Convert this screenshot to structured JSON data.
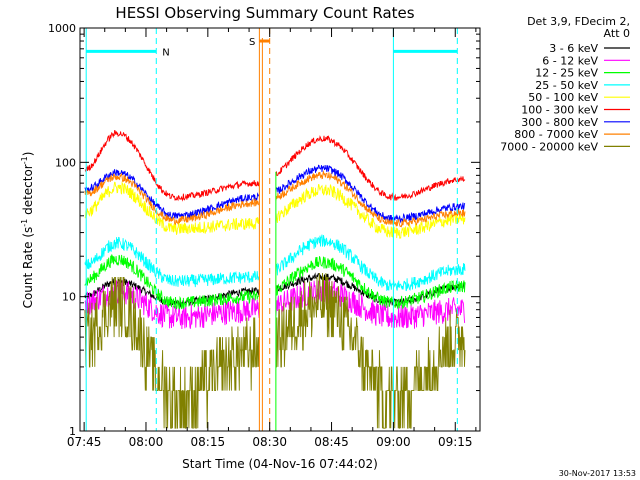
{
  "chart_data": {
    "type": "line",
    "title": "HESSI Observing Summary Count Rates",
    "xlabel": "Start Time (04-Nov-16 07:44:02)",
    "ylabel": "Count Rate (s",
    "ylabel_sup1": "-1",
    "ylabel_mid": " detector",
    "ylabel_sup2": "-1",
    "ylabel_end": ")",
    "yscale": "log",
    "ylim": [
      1,
      1000
    ],
    "xlim_minutes": [
      -1.0,
      96.0
    ],
    "x_ticks": [
      {
        "label": "07:45",
        "minutes": 0
      },
      {
        "label": "08:00",
        "minutes": 15
      },
      {
        "label": "08:15",
        "minutes": 30
      },
      {
        "label": "08:30",
        "minutes": 45
      },
      {
        "label": "08:45",
        "minutes": 60
      },
      {
        "label": "09:00",
        "minutes": 75
      },
      {
        "label": "09:15",
        "minutes": 90
      }
    ],
    "y_ticks": [
      {
        "label": "1",
        "value": 1
      },
      {
        "label": "10",
        "value": 10
      },
      {
        "label": "100",
        "value": 100
      },
      {
        "label": "1000",
        "value": 1000
      }
    ],
    "legend": {
      "header": [
        "Det 3,9, FDecim 2,",
        "Att 0"
      ],
      "placement": "right"
    },
    "series": [
      {
        "name": "3 - 6 keV",
        "color": "#000000",
        "points": [
          [
            0,
            10
          ],
          [
            8,
            13
          ],
          [
            22,
            9
          ],
          [
            42,
            11
          ],
          [
            58,
            14
          ],
          [
            75,
            9
          ],
          [
            92,
            12
          ]
        ]
      },
      {
        "name": "6 - 12 keV",
        "color": "#ff00ff",
        "points": [
          [
            0,
            9
          ],
          [
            8,
            11
          ],
          [
            22,
            7
          ],
          [
            42,
            8
          ],
          [
            58,
            11
          ],
          [
            75,
            7
          ],
          [
            92,
            8
          ]
        ]
      },
      {
        "name": "12 - 25 keV",
        "color": "#00ff00",
        "points": [
          [
            0,
            13
          ],
          [
            8,
            19
          ],
          [
            22,
            9
          ],
          [
            42,
            10
          ],
          [
            58,
            18
          ],
          [
            75,
            9
          ],
          [
            92,
            12
          ]
        ]
      },
      {
        "name": "25 - 50 keV",
        "color": "#00ffff",
        "points": [
          [
            0,
            17
          ],
          [
            8,
            25
          ],
          [
            22,
            13
          ],
          [
            42,
            14
          ],
          [
            58,
            26
          ],
          [
            75,
            12
          ],
          [
            92,
            16
          ]
        ]
      },
      {
        "name": "50 - 100 keV",
        "color": "#ffff00",
        "points": [
          [
            0,
            42
          ],
          [
            8,
            65
          ],
          [
            22,
            32
          ],
          [
            42,
            35
          ],
          [
            58,
            62
          ],
          [
            75,
            30
          ],
          [
            92,
            38
          ]
        ]
      },
      {
        "name": "100 - 300 keV",
        "color": "#ff0000",
        "points": [
          [
            0,
            88
          ],
          [
            8,
            165
          ],
          [
            22,
            55
          ],
          [
            42,
            70
          ],
          [
            58,
            150
          ],
          [
            75,
            55
          ],
          [
            92,
            75
          ]
        ]
      },
      {
        "name": "300 - 800 keV",
        "color": "#0000ff",
        "points": [
          [
            0,
            62
          ],
          [
            8,
            84
          ],
          [
            22,
            40
          ],
          [
            42,
            55
          ],
          [
            58,
            90
          ],
          [
            75,
            38
          ],
          [
            92,
            47
          ]
        ]
      },
      {
        "name": "800 - 7000 keV",
        "color": "#ff8000",
        "points": [
          [
            0,
            58
          ],
          [
            8,
            78
          ],
          [
            22,
            37
          ],
          [
            42,
            50
          ],
          [
            58,
            80
          ],
          [
            75,
            35
          ],
          [
            92,
            42
          ]
        ]
      },
      {
        "name": "7000 - 20000 keV",
        "color": "#808000",
        "points": [
          [
            0,
            5
          ],
          [
            8,
            9
          ],
          [
            22,
            1.8
          ],
          [
            42,
            4
          ],
          [
            58,
            9
          ],
          [
            75,
            1.8
          ],
          [
            92,
            5
          ]
        ]
      }
    ],
    "annotations": [
      {
        "label": "N",
        "color": "#00ffff",
        "interval_minutes": [
          0.5,
          17.5
        ],
        "level": 670
      },
      {
        "label": "S",
        "color": "#ff8000",
        "interval_minutes": [
          42.5,
          45.0
        ],
        "level": 800
      },
      {
        "label": "",
        "color": "#00ffff",
        "interval_minutes": [
          75.0,
          90.5
        ],
        "level": 670
      }
    ],
    "grid": false
  },
  "footer": {
    "timestamp": "30-Nov-2017 13:53"
  }
}
